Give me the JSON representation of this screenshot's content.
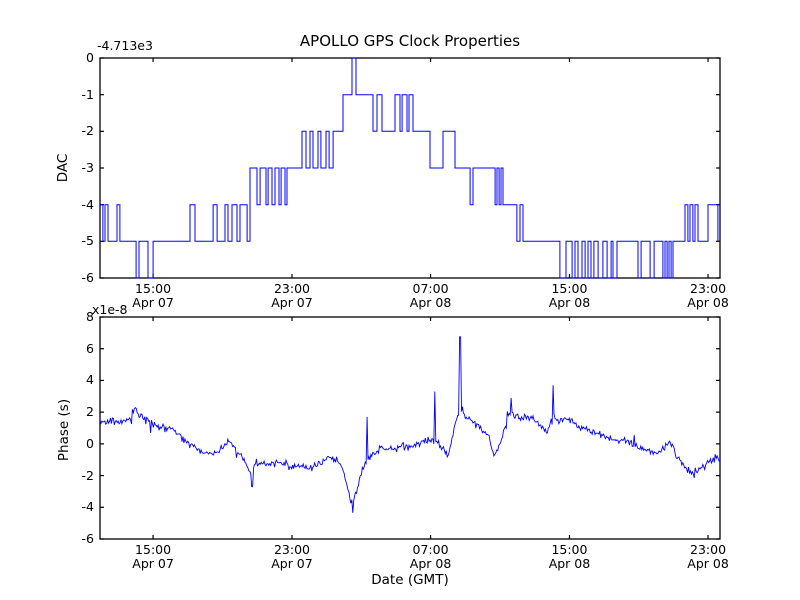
{
  "figure": {
    "title": "APOLLO GPS Clock Properties",
    "background_color": "#ffffff",
    "line_color": "#0000ff",
    "axis_color": "#000000"
  },
  "x_axis": {
    "label": "Date (GMT)",
    "lim_hours": [
      0,
      35.75
    ],
    "ticks": [
      {
        "t": 3.06,
        "time": "15:00",
        "date": "Apr 07"
      },
      {
        "t": 11.07,
        "time": "23:00",
        "date": "Apr 07"
      },
      {
        "t": 19.06,
        "time": "07:00",
        "date": "Apr 08"
      },
      {
        "t": 27.07,
        "time": "15:00",
        "date": "Apr 08"
      },
      {
        "t": 35.06,
        "time": "23:00",
        "date": "Apr 08"
      }
    ]
  },
  "chart_data": [
    {
      "type": "line",
      "subtype": "step",
      "title": "APOLLO GPS Clock Properties",
      "ylabel": "DAC",
      "offset_text": "-4.713e3",
      "ylim": [
        -6,
        0
      ],
      "yticks": [
        0,
        -1,
        -2,
        -3,
        -4,
        -5,
        -6
      ],
      "grid": false,
      "steps_t_hours_value": [
        [
          0,
          -4
        ],
        [
          0.17,
          -5
        ],
        [
          0.29,
          -4
        ],
        [
          0.46,
          -5
        ],
        [
          0.98,
          -4
        ],
        [
          1.15,
          -5
        ],
        [
          2.08,
          -6
        ],
        [
          2.25,
          -5
        ],
        [
          2.77,
          -6
        ],
        [
          3.06,
          -5
        ],
        [
          5.19,
          -4
        ],
        [
          5.48,
          -5
        ],
        [
          6.52,
          -4
        ],
        [
          6.75,
          -5
        ],
        [
          7.21,
          -4
        ],
        [
          7.38,
          -5
        ],
        [
          7.61,
          -4
        ],
        [
          7.9,
          -5
        ],
        [
          8.07,
          -4
        ],
        [
          8.48,
          -5
        ],
        [
          8.65,
          -3
        ],
        [
          9.05,
          -4
        ],
        [
          9.23,
          -3
        ],
        [
          9.57,
          -4
        ],
        [
          9.69,
          -3
        ],
        [
          9.92,
          -4
        ],
        [
          10.09,
          -3
        ],
        [
          10.32,
          -4
        ],
        [
          10.44,
          -3
        ],
        [
          10.67,
          -4
        ],
        [
          10.78,
          -3
        ],
        [
          11.65,
          -2
        ],
        [
          11.88,
          -3
        ],
        [
          12.11,
          -2
        ],
        [
          12.28,
          -3
        ],
        [
          12.57,
          -2
        ],
        [
          12.74,
          -3
        ],
        [
          13.03,
          -2
        ],
        [
          13.21,
          -3
        ],
        [
          13.44,
          -2
        ],
        [
          14.01,
          -1
        ],
        [
          14.53,
          0
        ],
        [
          14.76,
          -1
        ],
        [
          15.74,
          -2
        ],
        [
          15.97,
          -1
        ],
        [
          16.26,
          -2
        ],
        [
          17.01,
          -1
        ],
        [
          17.3,
          -2
        ],
        [
          17.42,
          -1
        ],
        [
          17.7,
          -2
        ],
        [
          17.82,
          -1
        ],
        [
          18.05,
          -2
        ],
        [
          19.03,
          -3
        ],
        [
          19.78,
          -2
        ],
        [
          20.47,
          -3
        ],
        [
          21.34,
          -4
        ],
        [
          21.51,
          -3
        ],
        [
          22.78,
          -4
        ],
        [
          22.89,
          -3
        ],
        [
          23.01,
          -4
        ],
        [
          23.12,
          -3
        ],
        [
          23.24,
          -4
        ],
        [
          24.04,
          -5
        ],
        [
          24.22,
          -4
        ],
        [
          24.39,
          -5
        ],
        [
          26.52,
          -6
        ],
        [
          26.87,
          -5
        ],
        [
          27.22,
          -6
        ],
        [
          27.39,
          -5
        ],
        [
          27.56,
          -6
        ],
        [
          27.79,
          -5
        ],
        [
          27.97,
          -6
        ],
        [
          28.14,
          -5
        ],
        [
          28.31,
          -6
        ],
        [
          28.48,
          -5
        ],
        [
          28.72,
          -6
        ],
        [
          29,
          -5
        ],
        [
          29.24,
          -6
        ],
        [
          29.47,
          -5
        ],
        [
          29.58,
          -6
        ],
        [
          29.81,
          -5
        ],
        [
          31.02,
          -6
        ],
        [
          31.2,
          -5
        ],
        [
          31.72,
          -6
        ],
        [
          31.95,
          -5
        ],
        [
          32.46,
          -6
        ],
        [
          32.58,
          -5
        ],
        [
          32.7,
          -6
        ],
        [
          32.81,
          -5
        ],
        [
          32.93,
          -6
        ],
        [
          33.04,
          -5
        ],
        [
          33.73,
          -4
        ],
        [
          33.9,
          -5
        ],
        [
          34.02,
          -4
        ],
        [
          34.19,
          -5
        ],
        [
          34.31,
          -4
        ],
        [
          34.48,
          -5
        ],
        [
          35.06,
          -4
        ],
        [
          35.63,
          -5
        ]
      ]
    },
    {
      "type": "line",
      "subtype": "noisy",
      "ylabel": "Phase (s)",
      "offset_text": "x1e-8",
      "xlabel": "Date (GMT)",
      "ylim": [
        -6,
        8
      ],
      "yticks": [
        8,
        6,
        4,
        2,
        0,
        -2,
        -4,
        -6
      ],
      "grid": false,
      "noise_sigma": 0.33,
      "trend_t_hours_value": [
        [
          0,
          1.4
        ],
        [
          0.58,
          1.5
        ],
        [
          1.15,
          1.3
        ],
        [
          1.73,
          1.6
        ],
        [
          2.02,
          2.3
        ],
        [
          2.31,
          1.8
        ],
        [
          2.77,
          1.4
        ],
        [
          3.46,
          1.1
        ],
        [
          4.15,
          0.9
        ],
        [
          4.73,
          0.4
        ],
        [
          5.31,
          -0.1
        ],
        [
          5.88,
          -0.5
        ],
        [
          6.46,
          -0.6
        ],
        [
          7.04,
          -0.4
        ],
        [
          7.38,
          0.2
        ],
        [
          7.79,
          -0.3
        ],
        [
          8.19,
          -0.8
        ],
        [
          8.54,
          -1.6
        ],
        [
          8.77,
          -1.9
        ],
        [
          9,
          -1.2
        ],
        [
          9.69,
          -1.3
        ],
        [
          10.38,
          -1.1
        ],
        [
          11.07,
          -1.5
        ],
        [
          11.53,
          -1.3
        ],
        [
          11.99,
          -1.6
        ],
        [
          12.57,
          -1.3
        ],
        [
          13.15,
          -0.9
        ],
        [
          13.61,
          -1
        ],
        [
          13.96,
          -1.4
        ],
        [
          14.24,
          -2.6
        ],
        [
          14.42,
          -3.6
        ],
        [
          14.59,
          -3.9
        ],
        [
          14.82,
          -2.9
        ],
        [
          15.11,
          -1.7
        ],
        [
          15.45,
          -0.9
        ],
        [
          15.86,
          -0.5
        ],
        [
          16.32,
          -0.2
        ],
        [
          16.84,
          -0.4
        ],
        [
          17.42,
          -0.1
        ],
        [
          17.99,
          -0.2
        ],
        [
          18.57,
          0.1
        ],
        [
          19.15,
          0.3
        ],
        [
          19.72,
          -0.2
        ],
        [
          20.07,
          -0.7
        ],
        [
          20.3,
          0.3
        ],
        [
          20.53,
          1.5
        ],
        [
          20.76,
          2
        ],
        [
          21.05,
          1.8
        ],
        [
          21.45,
          1.4
        ],
        [
          21.91,
          1.1
        ],
        [
          22.37,
          0.6
        ],
        [
          22.72,
          -0.8
        ],
        [
          23.01,
          -0.2
        ],
        [
          23.35,
          1
        ],
        [
          23.7,
          2
        ],
        [
          24.1,
          1.6
        ],
        [
          24.56,
          1.8
        ],
        [
          25.02,
          1.5
        ],
        [
          25.43,
          1.2
        ],
        [
          25.83,
          0.7
        ],
        [
          26.12,
          2
        ],
        [
          26.41,
          1.4
        ],
        [
          26.87,
          1.6
        ],
        [
          27.45,
          1.2
        ],
        [
          28.02,
          1
        ],
        [
          28.72,
          0.6
        ],
        [
          29.41,
          0.3
        ],
        [
          30.1,
          0.2
        ],
        [
          30.79,
          0
        ],
        [
          31.48,
          -0.4
        ],
        [
          32.06,
          -0.6
        ],
        [
          32.52,
          -0.3
        ],
        [
          32.87,
          0.2
        ],
        [
          33.21,
          -0.7
        ],
        [
          33.67,
          -1.4
        ],
        [
          34.08,
          -1.8
        ],
        [
          34.6,
          -1.6
        ],
        [
          35.12,
          -1.1
        ],
        [
          35.52,
          -0.9
        ],
        [
          35.75,
          -1
        ]
      ],
      "spikes_t_hours_value": [
        [
          8.77,
          -2.7
        ],
        [
          14.59,
          -4.35
        ],
        [
          15.4,
          1.7
        ],
        [
          19.3,
          3.3
        ],
        [
          20.76,
          6.75
        ],
        [
          23.7,
          2.9
        ],
        [
          26.12,
          3.7
        ]
      ]
    }
  ]
}
